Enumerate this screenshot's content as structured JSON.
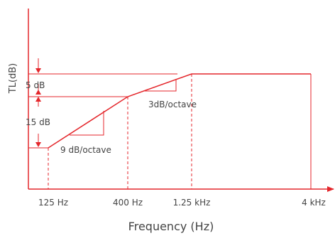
{
  "colors": {
    "line": "#e4262b",
    "text": "#444444",
    "background": "#ffffff"
  },
  "axes": {
    "y_label": "TL(dB)",
    "x_label": "Frequency (Hz)",
    "x_ticks": [
      "125 Hz",
      "400  Hz",
      "1.25  kHz",
      "4  kHz"
    ]
  },
  "annotations": {
    "step_upper": "5  dB",
    "step_lower": "15  dB",
    "slope_low": "9  dB/octave",
    "slope_high": "3dB/octave"
  },
  "chart_data": {
    "type": "line",
    "title": "",
    "xlabel": "Frequency (Hz)",
    "ylabel": "TL(dB)",
    "x_scale": "log",
    "series": [
      {
        "name": "",
        "points": [
          {
            "x": 125,
            "y": 0
          },
          {
            "x": 400,
            "y": 15
          },
          {
            "x": 1250,
            "y": 20
          },
          {
            "x": 4000,
            "y": 20
          }
        ]
      }
    ],
    "segment_slopes_db_per_octave": [
      9,
      3,
      0
    ]
  }
}
